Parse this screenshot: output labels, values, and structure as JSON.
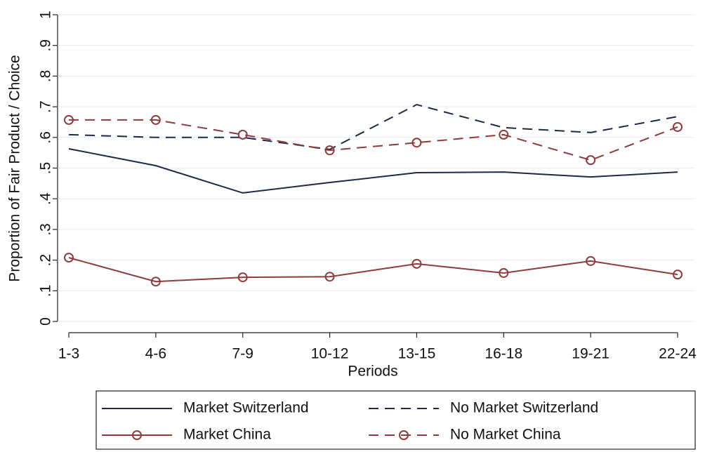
{
  "chart_data": {
    "type": "line",
    "xlabel": "Periods",
    "ylabel": "Proportion of Fair Product / Choice",
    "categories": [
      "1-3",
      "4-6",
      "7-9",
      "10-12",
      "13-15",
      "16-18",
      "19-21",
      "22-24"
    ],
    "ylim": [
      0,
      1
    ],
    "yticks": [
      0,
      {
        "value": 0.1,
        "label": ".1"
      },
      {
        "value": 0.2,
        "label": ".2"
      },
      {
        "value": 0.3,
        "label": ".3"
      },
      {
        "value": 0.4,
        "label": ".4"
      },
      {
        "value": 0.5,
        "label": ".5"
      },
      {
        "value": 0.6,
        "label": ".6"
      },
      {
        "value": 0.7,
        "label": ".7"
      },
      {
        "value": 0.8,
        "label": ".8"
      },
      {
        "value": 0.9,
        "label": ".9"
      },
      1
    ],
    "grid": true,
    "legend": "bottom",
    "series": [
      {
        "name": "Market Switzerland",
        "color": "#1b2a47",
        "line_style": "solid",
        "marker": "none",
        "values": [
          0.563,
          0.508,
          0.419,
          0.453,
          0.485,
          0.487,
          0.471,
          0.487
        ]
      },
      {
        "name": "No Market Switzerland",
        "color": "#1b2a47",
        "line_style": "dashed",
        "marker": "none",
        "values": [
          0.609,
          0.6,
          0.6,
          0.561,
          0.707,
          0.632,
          0.616,
          0.668
        ]
      },
      {
        "name": "Market China",
        "color": "#8f3b3b",
        "line_style": "solid",
        "marker": "circle",
        "values": [
          0.208,
          0.13,
          0.144,
          0.146,
          0.188,
          0.158,
          0.197,
          0.153
        ]
      },
      {
        "name": "No Market China",
        "color": "#8f3b3b",
        "line_style": "dashed",
        "marker": "circle",
        "values": [
          0.657,
          0.657,
          0.609,
          0.558,
          0.583,
          0.609,
          0.526,
          0.634
        ]
      }
    ]
  }
}
